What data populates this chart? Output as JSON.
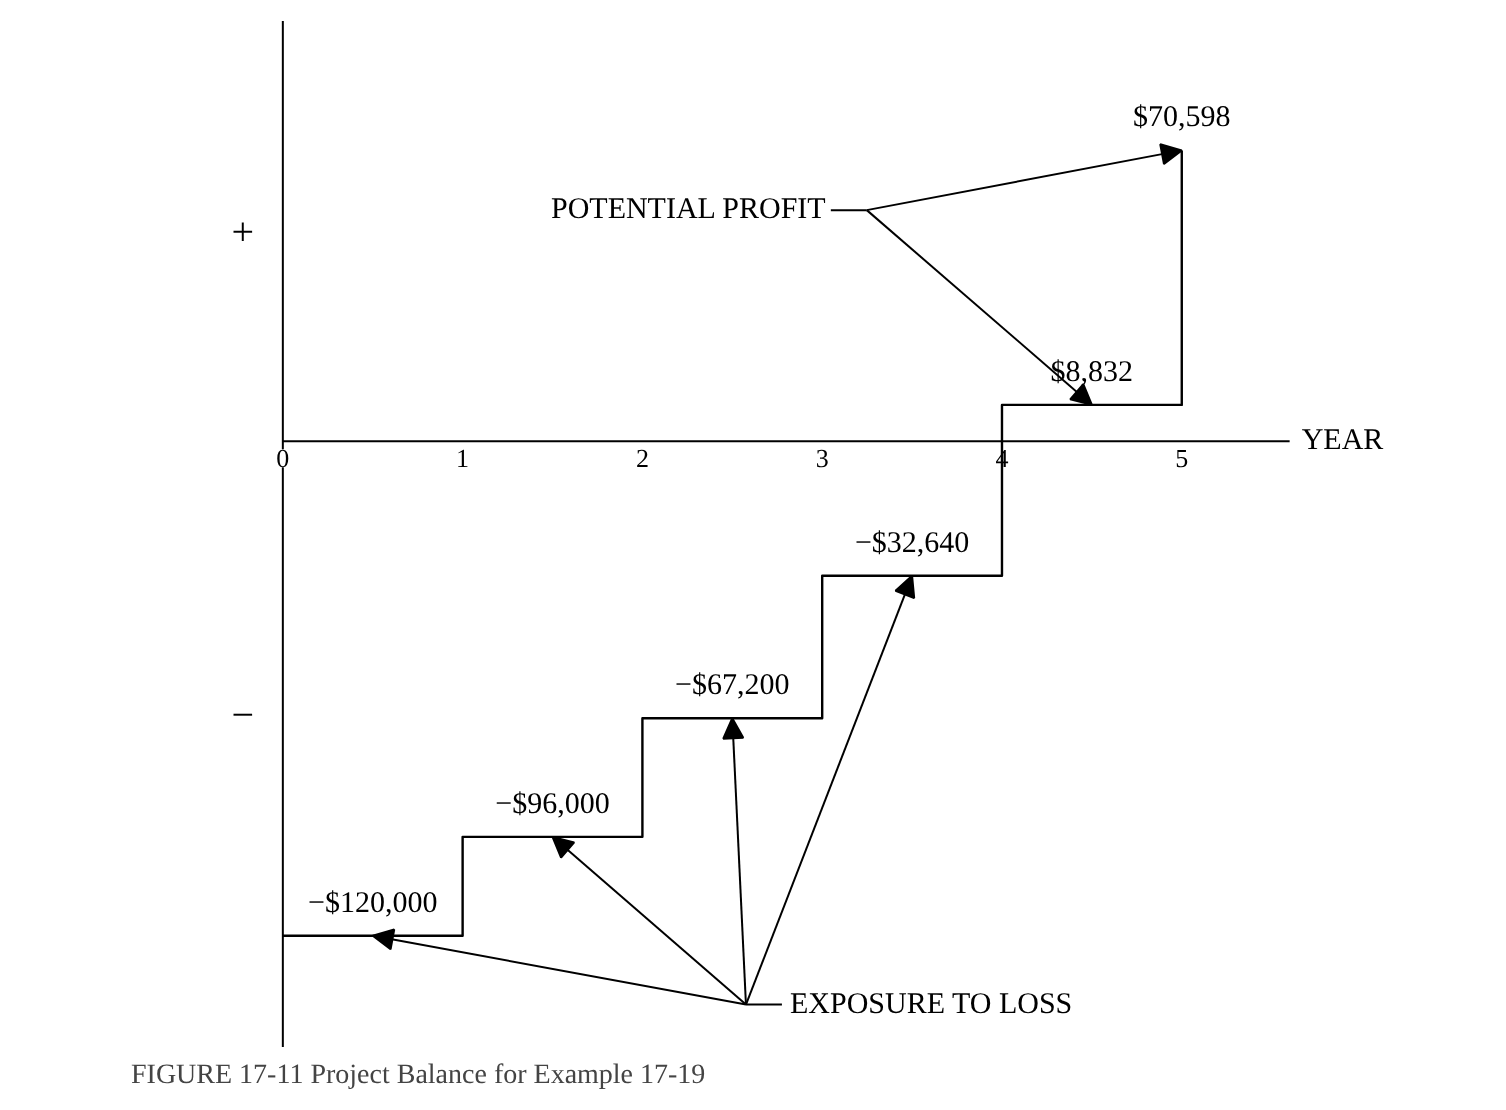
{
  "chart_data": {
    "type": "step",
    "title": "FIGURE 17-11 Project Balance for Example 17-19",
    "xlabel": "YEAR",
    "x": [
      0,
      1,
      2,
      3,
      4,
      5
    ],
    "values": [
      -120000,
      -96000,
      -67200,
      -32640,
      8832,
      70598
    ],
    "value_labels": [
      "−$120,000",
      "−$96,000",
      "−$67,200",
      "−$32,640",
      "$8,832",
      "$70,598"
    ],
    "color": "#000000",
    "xlim": [
      0,
      5.6
    ],
    "ylim": [
      -147000,
      102000
    ],
    "xticks": [
      0,
      1,
      2,
      3,
      4,
      5
    ],
    "annotations": [
      "POTENTIAL PROFIT",
      "EXPOSURE TO LOSS",
      "+",
      "−"
    ],
    "grid": false
  }
}
